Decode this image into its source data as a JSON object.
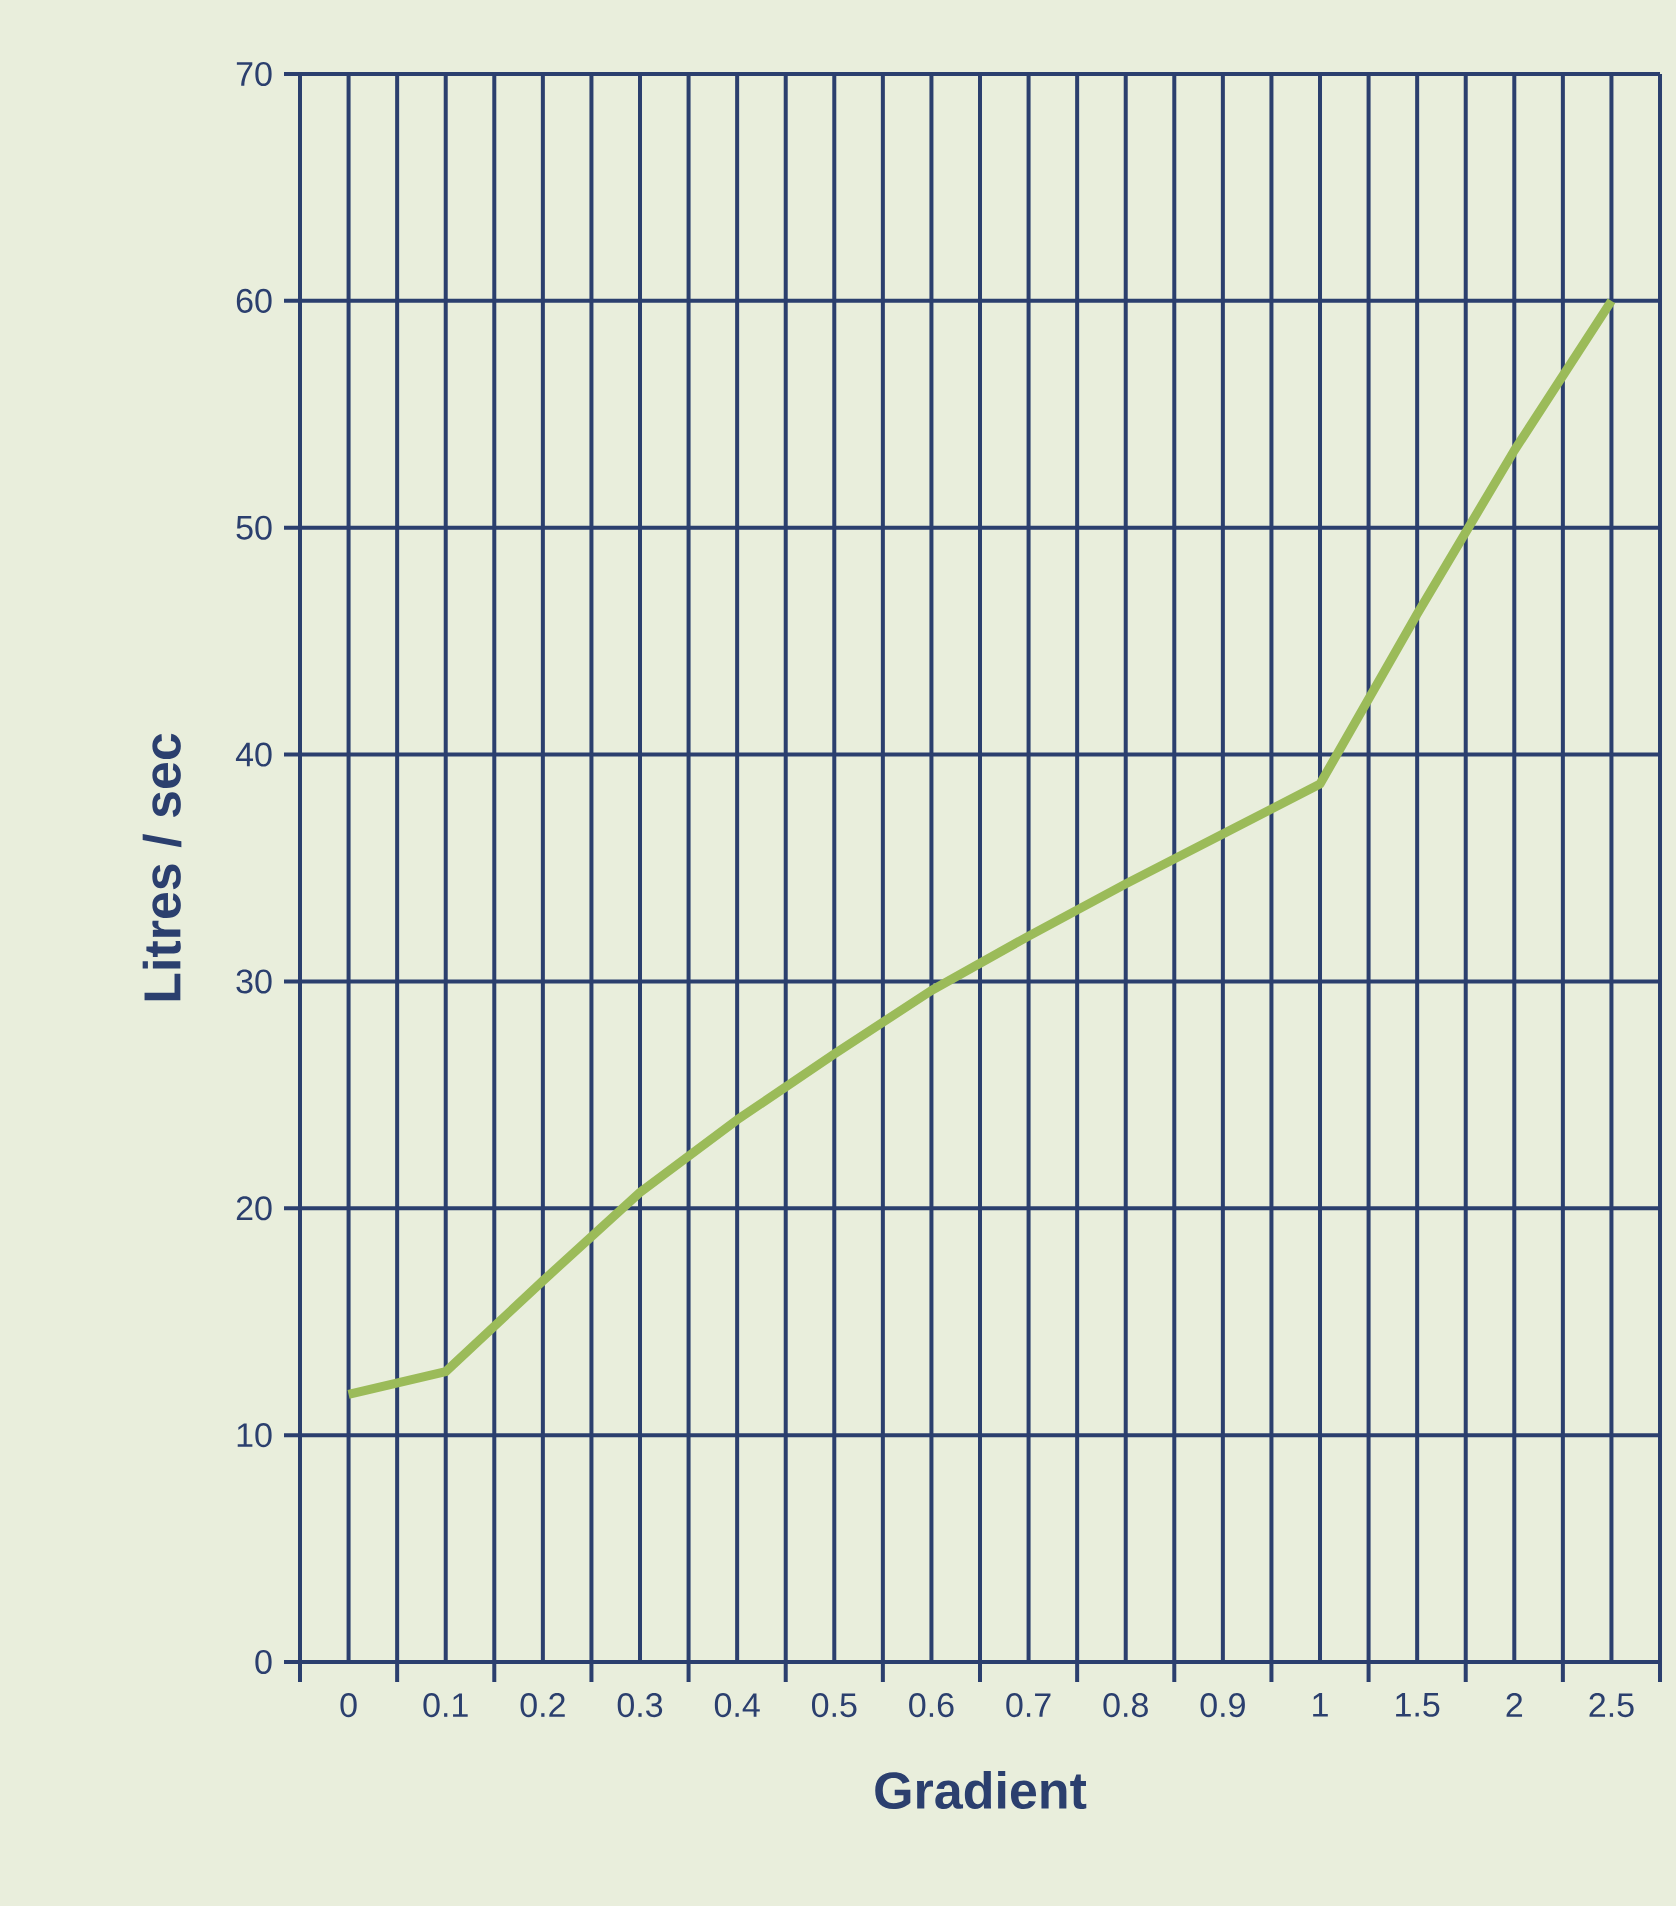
{
  "chart_data": {
    "type": "line",
    "xlabel": "Gradient",
    "ylabel": "Litres / sec",
    "categories": [
      "0",
      "0.1",
      "0.2",
      "0.3",
      "0.4",
      "0.5",
      "0.6",
      "0.7",
      "0.8",
      "0.9",
      "1",
      "1.5",
      "2",
      "2.5"
    ],
    "series": [
      {
        "color": "#9bbb59",
        "values": [
          11.8,
          12.8,
          16.8,
          20.7,
          23.9,
          26.8,
          29.6,
          32.0,
          34.3,
          36.5,
          38.7,
          46.2,
          53.4,
          60.0
        ]
      }
    ],
    "ylim": [
      0,
      70
    ],
    "yticks": [
      0,
      10,
      20,
      30,
      40,
      50,
      60,
      70
    ],
    "grid": true
  }
}
